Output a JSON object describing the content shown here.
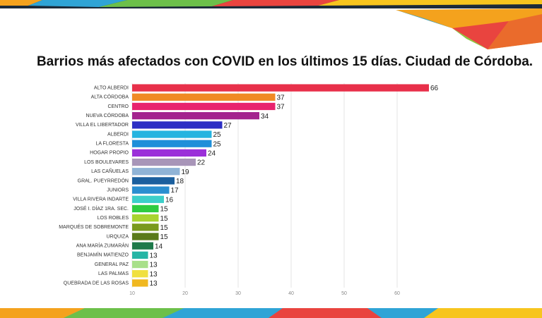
{
  "chart_data": {
    "type": "bar",
    "orientation": "horizontal",
    "title": "Barrios más afectados con COVID en los últimos 15 días. Ciudad de Córdoba.",
    "categories": [
      "ALTO ALBERDI",
      "ALTA CÓRDOBA",
      "CENTRO",
      "NUEVA CÓRDOBA",
      "VILLA EL LIBERTADOR",
      "ALBERDI",
      "LA FLORESTA",
      "HOGAR PROPIO",
      "LOS BOULEVARES",
      "LAS CAÑUELAS",
      "GRAL. PUEYRREDÓN",
      "JUNIORS",
      "VILLA RIVERA INDARTE",
      "JOSÉ I. DÍAZ 1RA. SEC.",
      "LOS ROBLES",
      "MARQUÉS DE SOBREMONTE",
      "URQUIZA",
      "ANA MARÍA ZUMARÁN",
      "BENJAMÍN MATIENZO",
      "GENERAL PAZ",
      "LAS PALMAS",
      "QUEBRADA DE LAS ROSAS"
    ],
    "values": [
      66,
      37,
      37,
      34,
      27,
      25,
      25,
      24,
      22,
      19,
      18,
      17,
      16,
      15,
      15,
      15,
      15,
      14,
      13,
      13,
      13,
      13
    ],
    "colors": [
      "#e8304a",
      "#f08a24",
      "#e8236e",
      "#a4238e",
      "#2d2fc4",
      "#25b4e0",
      "#1f8fd9",
      "#9b30d9",
      "#a895b8",
      "#8fb3d6",
      "#1b5f9e",
      "#2a8ed0",
      "#3ccfc9",
      "#2ecc40",
      "#a8d430",
      "#7a9a1e",
      "#5a7a1a",
      "#1e7a4a",
      "#26b5a5",
      "#a8e08a",
      "#f0e040",
      "#f0b820"
    ],
    "xlim": [
      10,
      68
    ],
    "xticks": [
      10,
      20,
      30,
      40,
      50,
      60
    ],
    "grid": true
  }
}
